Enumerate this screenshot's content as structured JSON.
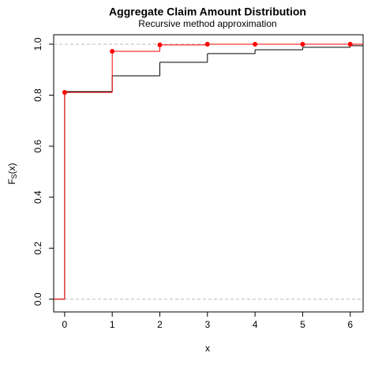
{
  "chart_data": {
    "type": "step",
    "title": "Aggregate Claim Amount Distribution",
    "subtitle": "Recursive method approximation",
    "xlabel": "x",
    "ylabel": {
      "main": "F",
      "sub": "S",
      "rest": "(x)"
    },
    "x": [
      0,
      1,
      2,
      3,
      4,
      5,
      6
    ],
    "series": [
      {
        "color": "#000000",
        "start": 0,
        "values": [
          0.814,
          0.876,
          0.929,
          0.963,
          0.978,
          0.988,
          0.994
        ],
        "points": false
      },
      {
        "color": "#ff0000",
        "start": 0,
        "values": [
          0.811,
          0.972,
          0.997,
          1.0,
          1.0,
          1.0,
          1.0
        ],
        "points": true
      }
    ],
    "reference_lines": [
      0,
      1
    ],
    "xlim": [
      -0.23,
      6.27
    ],
    "ylim": [
      -0.05,
      1.037
    ],
    "xticks": [
      0,
      1,
      2,
      3,
      4,
      5,
      6
    ],
    "yticks": [
      {
        "value": 0,
        "label": "0.0"
      },
      {
        "value": 0.2,
        "label": "0.2"
      },
      {
        "value": 0.4,
        "label": "0.4"
      },
      {
        "value": 0.6,
        "label": "0.6"
      },
      {
        "value": 0.8,
        "label": "0.8"
      },
      {
        "value": 1,
        "label": "1.0"
      }
    ]
  }
}
